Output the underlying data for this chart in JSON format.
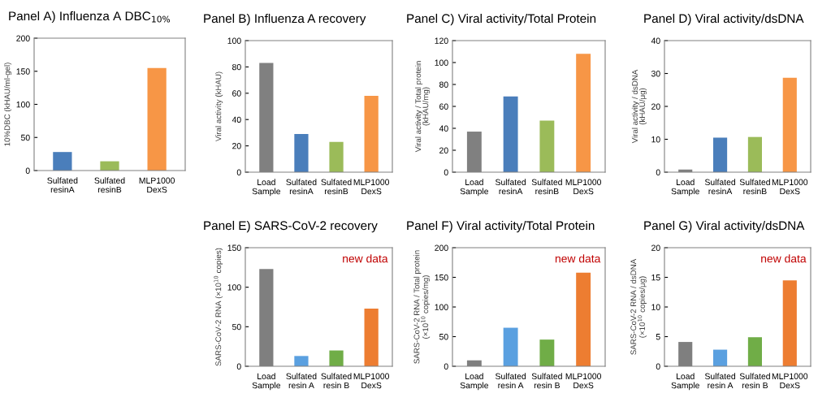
{
  "chart_data": [
    {
      "type": "bar",
      "title": "Panel A) Influenza A DBC$_{10%}$",
      "ylabel": "10%DBC (kHAU/ml-gel)",
      "categories": [
        "Sulfated\nresinA",
        "Sulfated\nresinB",
        "MLP1000\nDexS"
      ],
      "values": [
        28,
        14,
        155
      ],
      "colors": [
        "#4a7ebb",
        "#9bbb59",
        "#f79646"
      ],
      "ylim": [
        0,
        200
      ],
      "yticks": [
        0,
        50,
        100,
        150,
        200
      ],
      "grid": false
    },
    {
      "type": "bar",
      "title": "Panel B) Influenza A recovery",
      "ylabel": "Viral activity (kHAU)",
      "categories": [
        "Load\nSample",
        "Sulfated\nresinA",
        "Sulfated\nresinB",
        "MLP1000\nDexS"
      ],
      "values": [
        83,
        29,
        23,
        58
      ],
      "colors": [
        "#808080",
        "#4a7ebb",
        "#9bbb59",
        "#f79646"
      ],
      "ylim": [
        0,
        100
      ],
      "yticks": [
        0,
        20,
        40,
        60,
        80,
        100
      ],
      "grid": false
    },
    {
      "type": "bar",
      "title": "Panel C) Viral activity/Total Protein",
      "ylabel": "Viral activity / Total protein\n(kHAU/mg)",
      "categories": [
        "Load\nSample",
        "Sulfated\nresinA",
        "Sulfated\nresinB",
        "MLP1000\nDexS"
      ],
      "values": [
        37,
        69,
        47,
        108
      ],
      "colors": [
        "#808080",
        "#4a7ebb",
        "#9bbb59",
        "#f79646"
      ],
      "ylim": [
        0,
        120
      ],
      "yticks": [
        0,
        20,
        40,
        60,
        80,
        100,
        120
      ],
      "grid": false
    },
    {
      "type": "bar",
      "title": "Panel D) Viral activity/dsDNA",
      "ylabel": "Viral activity / dsDNA\n(kHAU/μg)",
      "categories": [
        "Load\nSample",
        "Sulfated\nresinA",
        "Sulfated\nresinB",
        "MLP1000\nDexS"
      ],
      "values": [
        0.8,
        10.5,
        10.7,
        28.7
      ],
      "colors": [
        "#808080",
        "#4a7ebb",
        "#9bbb59",
        "#f79646"
      ],
      "ylim": [
        0,
        40
      ],
      "yticks": [
        0,
        10,
        20,
        30,
        40
      ],
      "grid": false
    },
    {
      "type": "bar",
      "title": "Panel E) SARS-CoV-2 recovery",
      "ylabel": "SARS-CoV-2 RNA (×10$^{10}$ copies)",
      "annotations": [
        "new data"
      ],
      "categories": [
        "Load\nSample",
        "Sulfated\nresin A",
        "Sulfated\nresin B",
        "MLP1000\nDexS"
      ],
      "values": [
        123,
        13,
        20,
        73
      ],
      "colors": [
        "#7f7f7f",
        "#5aa0e0",
        "#70ad47",
        "#ed7d31"
      ],
      "ylim": [
        0,
        150
      ],
      "yticks": [
        0,
        50,
        100,
        150
      ],
      "grid": false
    },
    {
      "type": "bar",
      "title": "Panel F) Viral activity/Total Protein",
      "ylabel": "SARS-CoV-2 RNA / Total protein\n(×10$^{10}$ copies/mg)",
      "annotations": [
        "new data"
      ],
      "categories": [
        "Load\nSample",
        "Sulfated\nresin A",
        "Sulfated\nresin B",
        "MLP1000\nDexS"
      ],
      "values": [
        10,
        65,
        45,
        158
      ],
      "colors": [
        "#7f7f7f",
        "#5aa0e0",
        "#70ad47",
        "#ed7d31"
      ],
      "ylim": [
        0,
        200
      ],
      "yticks": [
        0,
        50,
        100,
        150,
        200
      ],
      "grid": false
    },
    {
      "type": "bar",
      "title": "Panel G) Viral activity/dsDNA",
      "ylabel": "SARS-CoV-2 RNA / dsDNA\n(×10$^{10}$ copies/μg)",
      "annotations": [
        "new data"
      ],
      "categories": [
        "Load\nSample",
        "Sulfated\nresin A",
        "Sulfated\nresin B",
        "MLP1000\nDexS"
      ],
      "values": [
        4.1,
        2.8,
        4.9,
        14.5
      ],
      "colors": [
        "#7f7f7f",
        "#5aa0e0",
        "#70ad47",
        "#ed7d31"
      ],
      "ylim": [
        0,
        20
      ],
      "yticks": [
        0,
        5,
        10,
        15,
        20
      ],
      "grid": false
    }
  ]
}
